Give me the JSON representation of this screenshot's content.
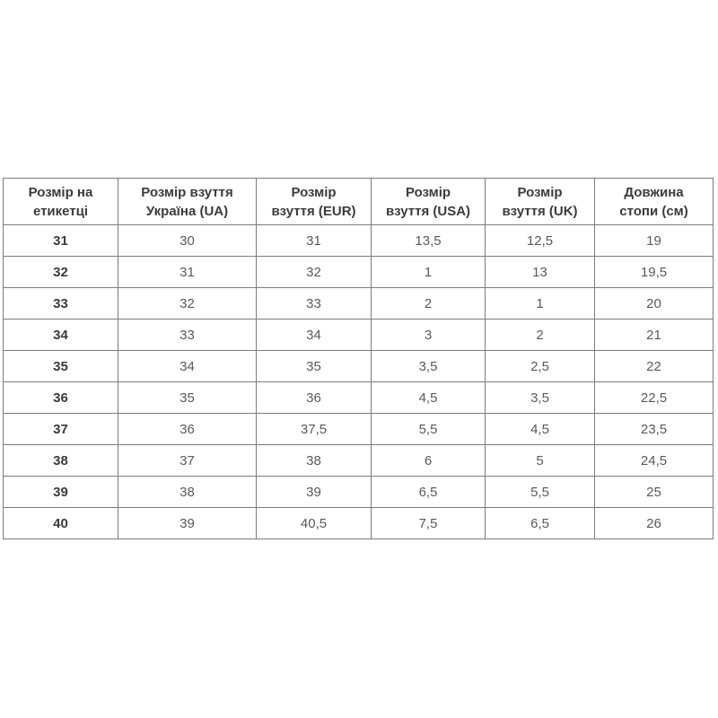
{
  "colors": {
    "border": "#7b7b7b",
    "header_text": "#3b3b3b",
    "cell_text": "#595959",
    "page_background": "#ffffff"
  },
  "display": {
    "header_lines": [
      {
        "line1": "Розмір на",
        "line2": "етикетці"
      },
      {
        "line1": "Розмір взуття",
        "line2": "Україна (UA)"
      },
      {
        "line1": "Розмір",
        "line2": "взуття (EUR)"
      },
      {
        "line1": "Розмір",
        "line2": "взуття (USA)"
      },
      {
        "line1": "Розмір",
        "line2": "взуття (UK)"
      },
      {
        "line1": "Довжина",
        "line2": "стопи (см)"
      }
    ]
  },
  "chart_data": {
    "type": "table",
    "columns": [
      "Розмір на етикетці",
      "Розмір взуття Україна (UA)",
      "Розмір взуття (EUR)",
      "Розмір взуття (USA)",
      "Розмір взуття (UK)",
      "Довжина стопи (см)"
    ],
    "rows": [
      [
        "31",
        "30",
        "31",
        "13,5",
        "12,5",
        "19"
      ],
      [
        "32",
        "31",
        "32",
        "1",
        "13",
        "19,5"
      ],
      [
        "33",
        "32",
        "33",
        "2",
        "1",
        "20"
      ],
      [
        "34",
        "33",
        "34",
        "3",
        "2",
        "21"
      ],
      [
        "35",
        "34",
        "35",
        "3,5",
        "2,5",
        "22"
      ],
      [
        "36",
        "35",
        "36",
        "4,5",
        "3,5",
        "22,5"
      ],
      [
        "37",
        "36",
        "37,5",
        "5,5",
        "4,5",
        "23,5"
      ],
      [
        "38",
        "37",
        "38",
        "6",
        "5",
        "24,5"
      ],
      [
        "39",
        "38",
        "39",
        "6,5",
        "5,5",
        "25"
      ],
      [
        "40",
        "39",
        "40,5",
        "7,5",
        "6,5",
        "26"
      ]
    ]
  }
}
